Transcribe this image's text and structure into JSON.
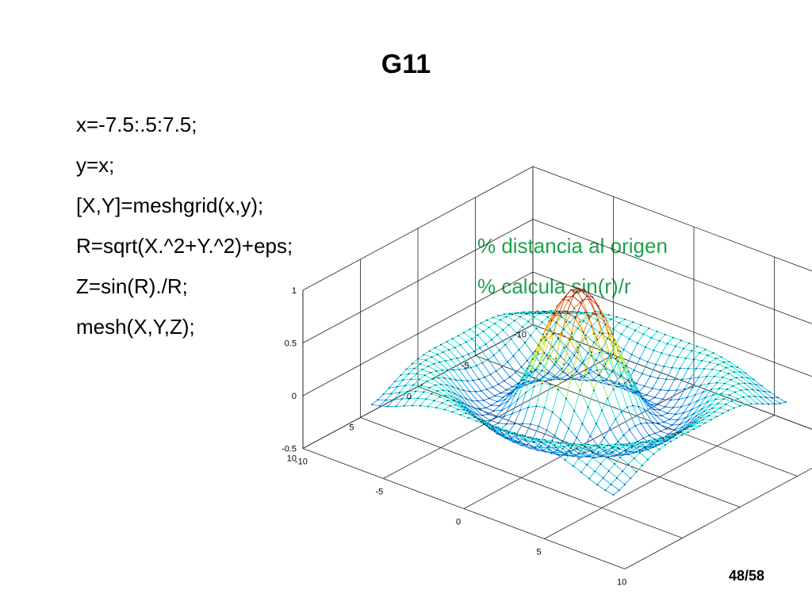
{
  "slide": {
    "title": "G11",
    "page_number": "48/58",
    "code_lines": [
      {
        "code": "x=-7.5:.5:7.5;",
        "comment": ""
      },
      {
        "code": "y=x;",
        "comment": ""
      },
      {
        "code": "[X,Y]=meshgrid(x,y);",
        "comment": ""
      },
      {
        "code": "R=sqrt(X.^2+Y.^2)+eps;",
        "comment": "% distancia al origen"
      },
      {
        "code": "Z=sin(R)./R;",
        "comment": "% calcula sin(r)/r"
      },
      {
        "code": "mesh(X,Y,Z);",
        "comment": ""
      }
    ],
    "colors": {
      "comment": "#1ea34a"
    }
  },
  "chart_data": {
    "type": "mesh",
    "function": "sin(R)/R",
    "x_range": [
      -7.5,
      7.5
    ],
    "y_range": [
      -7.5,
      7.5
    ],
    "step": 0.5,
    "z_ticks": [
      "1",
      "0.5",
      "0",
      "-0.5"
    ],
    "x_ticks": [
      "-10",
      "-5",
      "0",
      "5",
      "10"
    ],
    "y_ticks": [
      "10",
      "5",
      "0",
      "-5",
      "-10"
    ],
    "zlim": [
      -0.5,
      1
    ],
    "grid": true
  }
}
